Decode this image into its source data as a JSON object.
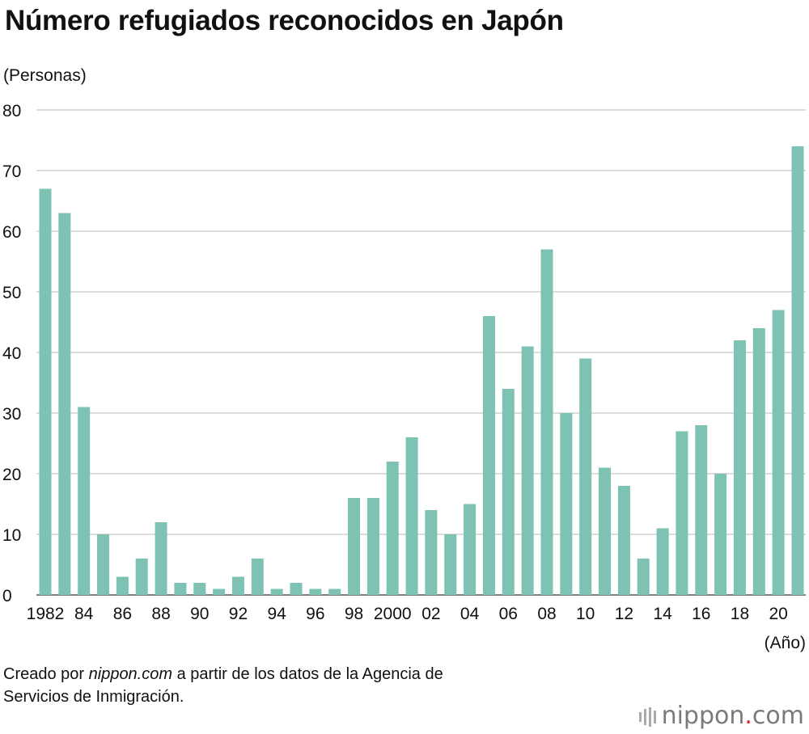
{
  "chart_data": {
    "type": "bar",
    "title": "Número refugiados reconocidos en Japón",
    "ylabel": "(Personas)",
    "xlabel": "(Año)",
    "ylim": [
      0,
      80
    ],
    "yticks": [
      0,
      10,
      20,
      30,
      40,
      50,
      60,
      70,
      80
    ],
    "grid": true,
    "color": "#7dc2b3",
    "categories": [
      "1982",
      "1983",
      "1984",
      "1985",
      "1986",
      "1987",
      "1988",
      "1989",
      "1990",
      "1991",
      "1992",
      "1993",
      "1994",
      "1995",
      "1996",
      "1997",
      "1998",
      "1999",
      "2000",
      "2001",
      "2002",
      "2003",
      "2004",
      "2005",
      "2006",
      "2007",
      "2008",
      "2009",
      "2010",
      "2011",
      "2012",
      "2013",
      "2014",
      "2015",
      "2016",
      "2017",
      "2018",
      "2019",
      "2020",
      "2021"
    ],
    "tick_labels": [
      "1982",
      "",
      "84",
      "",
      "86",
      "",
      "88",
      "",
      "90",
      "",
      "92",
      "",
      "94",
      "",
      "96",
      "",
      "98",
      "",
      "2000",
      "",
      "02",
      "",
      "04",
      "",
      "06",
      "",
      "08",
      "",
      "10",
      "",
      "12",
      "",
      "14",
      "",
      "16",
      "",
      "18",
      "",
      "20",
      ""
    ],
    "values": [
      67,
      63,
      31,
      10,
      3,
      6,
      12,
      2,
      2,
      1,
      3,
      6,
      1,
      2,
      1,
      1,
      16,
      16,
      22,
      26,
      14,
      10,
      15,
      46,
      34,
      41,
      57,
      30,
      39,
      21,
      18,
      6,
      11,
      27,
      28,
      20,
      42,
      44,
      47,
      74
    ]
  },
  "source": {
    "prefix": "Creado por ",
    "site": "nippon.com",
    "suffix": " a partir de los datos de la Agencia de",
    "line2": "Servicios de Inmigración."
  },
  "logo": {
    "name": "nippon",
    "dot": ".",
    "tld": "com"
  }
}
